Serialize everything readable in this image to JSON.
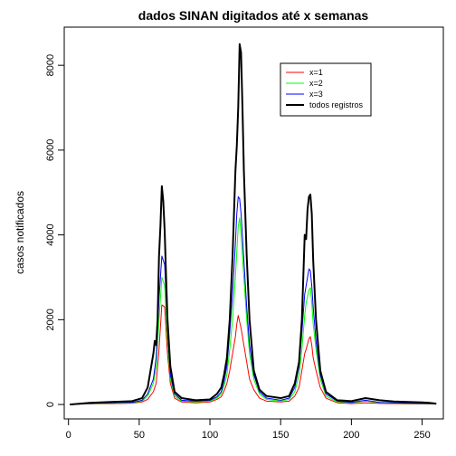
{
  "chart_data": {
    "type": "line",
    "title": "dados SINAN digitados até x semanas",
    "xlabel": "",
    "ylabel": "casos notificados",
    "xlim": [
      -3,
      265
    ],
    "ylim": [
      -340,
      8900
    ],
    "xticks": [
      0,
      50,
      100,
      150,
      200,
      250
    ],
    "yticks": [
      0,
      2000,
      4000,
      6000,
      8000
    ],
    "grid": false,
    "legend_position": "top-right",
    "series": [
      {
        "name": "x=1",
        "color": "#ff0000",
        "points": [
          [
            1,
            0
          ],
          [
            15,
            15
          ],
          [
            30,
            20
          ],
          [
            45,
            30
          ],
          [
            52,
            60
          ],
          [
            56,
            120
          ],
          [
            60,
            300
          ],
          [
            62,
            500
          ],
          [
            64,
            1300
          ],
          [
            66,
            2350
          ],
          [
            68,
            2300
          ],
          [
            70,
            1200
          ],
          [
            72,
            500
          ],
          [
            75,
            150
          ],
          [
            80,
            60
          ],
          [
            90,
            40
          ],
          [
            100,
            60
          ],
          [
            105,
            120
          ],
          [
            108,
            180
          ],
          [
            110,
            320
          ],
          [
            112,
            500
          ],
          [
            114,
            800
          ],
          [
            116,
            1200
          ],
          [
            118,
            1600
          ],
          [
            119,
            1900
          ],
          [
            120,
            2100
          ],
          [
            121,
            1950
          ],
          [
            122,
            1800
          ],
          [
            124,
            1400
          ],
          [
            126,
            1000
          ],
          [
            128,
            600
          ],
          [
            131,
            350
          ],
          [
            135,
            150
          ],
          [
            140,
            80
          ],
          [
            150,
            60
          ],
          [
            156,
            80
          ],
          [
            160,
            200
          ],
          [
            163,
            400
          ],
          [
            165,
            800
          ],
          [
            167,
            1200
          ],
          [
            168,
            1300
          ],
          [
            170,
            1550
          ],
          [
            171,
            1600
          ],
          [
            172,
            1400
          ],
          [
            173,
            1100
          ],
          [
            175,
            800
          ],
          [
            178,
            400
          ],
          [
            182,
            150
          ],
          [
            190,
            40
          ],
          [
            200,
            20
          ],
          [
            210,
            40
          ],
          [
            220,
            25
          ],
          [
            230,
            20
          ],
          [
            240,
            15
          ],
          [
            250,
            15
          ],
          [
            260,
            10
          ]
        ]
      },
      {
        "name": "x=2",
        "color": "#00ff00",
        "points": [
          [
            1,
            0
          ],
          [
            15,
            20
          ],
          [
            30,
            30
          ],
          [
            45,
            40
          ],
          [
            52,
            80
          ],
          [
            56,
            200
          ],
          [
            60,
            500
          ],
          [
            62,
            900
          ],
          [
            64,
            2000
          ],
          [
            66,
            3000
          ],
          [
            68,
            2800
          ],
          [
            70,
            1500
          ],
          [
            72,
            600
          ],
          [
            75,
            200
          ],
          [
            80,
            80
          ],
          [
            90,
            60
          ],
          [
            100,
            80
          ],
          [
            105,
            150
          ],
          [
            108,
            250
          ],
          [
            110,
            450
          ],
          [
            112,
            700
          ],
          [
            114,
            1300
          ],
          [
            116,
            2000
          ],
          [
            118,
            3000
          ],
          [
            119,
            3600
          ],
          [
            120,
            4200
          ],
          [
            121,
            4400
          ],
          [
            122,
            4000
          ],
          [
            124,
            3000
          ],
          [
            126,
            2000
          ],
          [
            128,
            1200
          ],
          [
            131,
            600
          ],
          [
            135,
            250
          ],
          [
            140,
            120
          ],
          [
            150,
            80
          ],
          [
            156,
            120
          ],
          [
            160,
            300
          ],
          [
            163,
            700
          ],
          [
            165,
            1300
          ],
          [
            167,
            2100
          ],
          [
            168,
            2400
          ],
          [
            170,
            2700
          ],
          [
            171,
            2750
          ],
          [
            172,
            2400
          ],
          [
            173,
            1900
          ],
          [
            175,
            1300
          ],
          [
            178,
            600
          ],
          [
            182,
            200
          ],
          [
            190,
            60
          ],
          [
            200,
            40
          ],
          [
            210,
            80
          ],
          [
            220,
            40
          ],
          [
            230,
            30
          ],
          [
            240,
            25
          ],
          [
            250,
            20
          ],
          [
            260,
            15
          ]
        ]
      },
      {
        "name": "x=3",
        "color": "#0000ff",
        "points": [
          [
            1,
            0
          ],
          [
            15,
            25
          ],
          [
            30,
            40
          ],
          [
            45,
            50
          ],
          [
            52,
            100
          ],
          [
            56,
            250
          ],
          [
            60,
            600
          ],
          [
            62,
            1100
          ],
          [
            64,
            2500
          ],
          [
            66,
            3500
          ],
          [
            68,
            3300
          ],
          [
            70,
            1800
          ],
          [
            72,
            700
          ],
          [
            75,
            250
          ],
          [
            80,
            100
          ],
          [
            90,
            80
          ],
          [
            100,
            100
          ],
          [
            105,
            180
          ],
          [
            108,
            300
          ],
          [
            110,
            550
          ],
          [
            112,
            900
          ],
          [
            114,
            1700
          ],
          [
            116,
            2600
          ],
          [
            118,
            3800
          ],
          [
            119,
            4500
          ],
          [
            120,
            4900
          ],
          [
            121,
            4850
          ],
          [
            122,
            4500
          ],
          [
            124,
            3400
          ],
          [
            126,
            2300
          ],
          [
            128,
            1400
          ],
          [
            131,
            700
          ],
          [
            135,
            300
          ],
          [
            140,
            150
          ],
          [
            150,
            100
          ],
          [
            156,
            150
          ],
          [
            160,
            400
          ],
          [
            163,
            900
          ],
          [
            165,
            1700
          ],
          [
            167,
            2600
          ],
          [
            168,
            2800
          ],
          [
            170,
            3200
          ],
          [
            171,
            3150
          ],
          [
            172,
            2800
          ],
          [
            173,
            2300
          ],
          [
            175,
            1500
          ],
          [
            178,
            700
          ],
          [
            182,
            250
          ],
          [
            190,
            80
          ],
          [
            200,
            50
          ],
          [
            210,
            100
          ],
          [
            220,
            50
          ],
          [
            230,
            40
          ],
          [
            240,
            30
          ],
          [
            250,
            25
          ],
          [
            260,
            20
          ]
        ]
      },
      {
        "name": "todos registros",
        "color": "#000000",
        "points": [
          [
            1,
            0
          ],
          [
            15,
            40
          ],
          [
            30,
            60
          ],
          [
            45,
            80
          ],
          [
            52,
            150
          ],
          [
            56,
            400
          ],
          [
            58,
            800
          ],
          [
            60,
            1200
          ],
          [
            61,
            1500
          ],
          [
            62,
            1400
          ],
          [
            63,
            2000
          ],
          [
            64,
            3500
          ],
          [
            65,
            4200
          ],
          [
            66,
            5150
          ],
          [
            67,
            4800
          ],
          [
            68,
            4100
          ],
          [
            69,
            3000
          ],
          [
            70,
            2000
          ],
          [
            72,
            900
          ],
          [
            75,
            300
          ],
          [
            80,
            150
          ],
          [
            90,
            100
          ],
          [
            100,
            120
          ],
          [
            105,
            250
          ],
          [
            108,
            400
          ],
          [
            110,
            700
          ],
          [
            112,
            1100
          ],
          [
            114,
            2000
          ],
          [
            116,
            3500
          ],
          [
            118,
            5500
          ],
          [
            119,
            6100
          ],
          [
            120,
            7000
          ],
          [
            121,
            8500
          ],
          [
            122,
            8300
          ],
          [
            123,
            7000
          ],
          [
            124,
            5500
          ],
          [
            126,
            3500
          ],
          [
            128,
            2000
          ],
          [
            131,
            800
          ],
          [
            135,
            350
          ],
          [
            140,
            200
          ],
          [
            150,
            150
          ],
          [
            156,
            200
          ],
          [
            160,
            500
          ],
          [
            163,
            1000
          ],
          [
            165,
            2000
          ],
          [
            166,
            3000
          ],
          [
            167,
            4000
          ],
          [
            168,
            3900
          ],
          [
            169,
            4600
          ],
          [
            170,
            4900
          ],
          [
            171,
            4950
          ],
          [
            172,
            4500
          ],
          [
            173,
            3400
          ],
          [
            175,
            2000
          ],
          [
            178,
            800
          ],
          [
            182,
            300
          ],
          [
            190,
            100
          ],
          [
            200,
            80
          ],
          [
            210,
            150
          ],
          [
            220,
            100
          ],
          [
            230,
            70
          ],
          [
            240,
            60
          ],
          [
            250,
            50
          ],
          [
            255,
            40
          ],
          [
            260,
            20
          ]
        ]
      }
    ]
  }
}
